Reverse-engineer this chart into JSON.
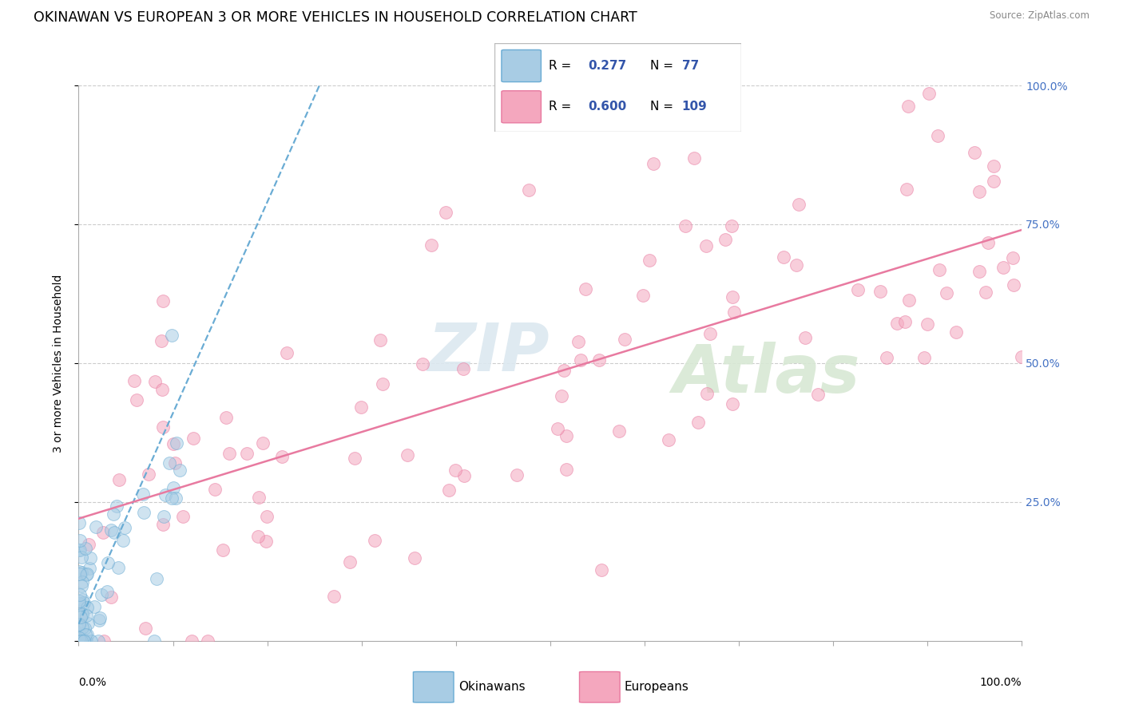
{
  "title": "OKINAWAN VS EUROPEAN 3 OR MORE VEHICLES IN HOUSEHOLD CORRELATION CHART",
  "source_text": "Source: ZipAtlas.com",
  "ylabel": "3 or more Vehicles in Household",
  "watermark_left": "ZIP",
  "watermark_right": "Atlas",
  "legend_blue_r": "0.277",
  "legend_blue_n": "77",
  "legend_pink_r": "0.600",
  "legend_pink_n": "109",
  "blue_fill": "#a8cce4",
  "blue_edge": "#6aacd4",
  "pink_fill": "#f4a7be",
  "pink_edge": "#e87aa0",
  "blue_line_color": "#6aacd4",
  "pink_line_color": "#e87aa0",
  "ytick_color": "#4472c4",
  "grid_color": "#cccccc",
  "legend_r_color": "#3355aa",
  "legend_n_color": "#3355aa"
}
